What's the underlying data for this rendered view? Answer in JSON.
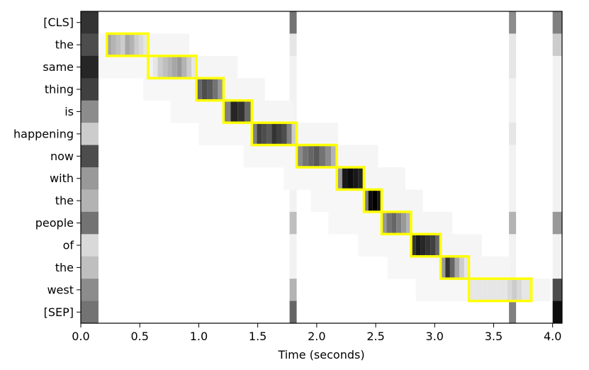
{
  "chart_data": {
    "type": "heatmap",
    "title": "",
    "xlabel": "Time (seconds)",
    "ylabel": "",
    "xlim": [
      0.0,
      4.08
    ],
    "x_ticks": [
      "0.0",
      "0.5",
      "1.0",
      "1.5",
      "2.0",
      "2.5",
      "3.0",
      "3.5",
      "4.0"
    ],
    "x_tick_values": [
      0.0,
      0.5,
      1.0,
      1.5,
      2.0,
      2.5,
      3.0,
      3.5,
      4.0
    ],
    "tokens": [
      "[CLS]",
      "the",
      "same",
      "thing",
      "is",
      "happening",
      "now",
      "with",
      "the",
      "people",
      "of",
      "the",
      "west",
      "[SEP]"
    ],
    "colormap": "grayscale (white = low, black = high)",
    "highlight_color": "#ffff00",
    "frame_width_seconds": 0.04,
    "alignment_boxes": [
      {
        "token": "the",
        "start": 0.22,
        "end": 0.57
      },
      {
        "token": "same",
        "start": 0.57,
        "end": 0.98
      },
      {
        "token": "thing",
        "start": 0.98,
        "end": 1.21
      },
      {
        "token": "is",
        "start": 1.21,
        "end": 1.45
      },
      {
        "token": "happening",
        "start": 1.45,
        "end": 1.83
      },
      {
        "token": "now",
        "start": 1.83,
        "end": 2.17
      },
      {
        "token": "with",
        "start": 2.17,
        "end": 2.4
      },
      {
        "token": "the",
        "start": 2.4,
        "end": 2.55
      },
      {
        "token": "people",
        "start": 2.55,
        "end": 2.8
      },
      {
        "token": "of",
        "start": 2.8,
        "end": 3.05
      },
      {
        "token": "the",
        "start": 3.05,
        "end": 3.29
      },
      {
        "token": "west",
        "start": 3.29,
        "end": 3.82
      }
    ],
    "peaks": [
      {
        "token": "the",
        "start": 0.22,
        "end": 0.57,
        "level": [
          0.35,
          0.3,
          0.25,
          0.2,
          0.35,
          0.3,
          0.2,
          0.15,
          0.1
        ]
      },
      {
        "token": "same",
        "start": 0.57,
        "end": 0.98,
        "level": [
          0.05,
          0.1,
          0.2,
          0.25,
          0.3,
          0.35,
          0.4,
          0.3,
          0.2,
          0.1
        ]
      },
      {
        "token": "thing",
        "start": 0.98,
        "end": 1.21,
        "level": [
          0.6,
          0.7,
          0.65,
          0.55,
          0.4
        ]
      },
      {
        "token": "is",
        "start": 1.21,
        "end": 1.45,
        "level": [
          0.5,
          0.85,
          0.8,
          0.6
        ]
      },
      {
        "token": "happening",
        "start": 1.45,
        "end": 1.83,
        "level": [
          0.5,
          0.75,
          0.7,
          0.65,
          0.8,
          0.75,
          0.7,
          0.5,
          0.2
        ]
      },
      {
        "token": "now",
        "start": 1.83,
        "end": 2.17,
        "level": [
          0.45,
          0.55,
          0.6,
          0.65,
          0.55,
          0.45,
          0.3
        ]
      },
      {
        "token": "with",
        "start": 2.17,
        "end": 2.4,
        "level": [
          0.4,
          0.9,
          0.95,
          0.9,
          0.85
        ]
      },
      {
        "token": "the",
        "start": 2.4,
        "end": 2.55,
        "level": [
          0.5,
          0.95,
          1.0,
          0.9
        ]
      },
      {
        "token": "people",
        "start": 2.55,
        "end": 2.8,
        "level": [
          0.4,
          0.55,
          0.6,
          0.5,
          0.4,
          0.3
        ]
      },
      {
        "token": "of",
        "start": 2.8,
        "end": 3.05,
        "level": [
          0.8,
          0.9,
          0.85,
          0.8,
          0.75,
          0.6
        ]
      },
      {
        "token": "the",
        "start": 3.05,
        "end": 3.29,
        "level": [
          0.4,
          0.8,
          0.6,
          0.35,
          0.2,
          0.1
        ]
      },
      {
        "token": "west",
        "start": 3.29,
        "end": 3.82,
        "level": [
          0.1,
          0.1,
          0.1,
          0.1,
          0.1,
          0.1,
          0.1,
          0.1,
          0.15,
          0.2,
          0.15,
          0.1,
          0.1
        ]
      }
    ],
    "column_artifacts": [
      {
        "start": 0.0,
        "end": 0.15,
        "levels": [
          0.8,
          0.7,
          0.85,
          0.75,
          0.45,
          0.2,
          0.7,
          0.4,
          0.3,
          0.55,
          0.15,
          0.25,
          0.45,
          0.55
        ]
      },
      {
        "start": 1.77,
        "end": 1.83,
        "levels": [
          0.55,
          0.1,
          0.05,
          0.05,
          0.05,
          0.05,
          0.05,
          0.05,
          0.05,
          0.25,
          0.05,
          0.05,
          0.3,
          0.6
        ]
      },
      {
        "start": 3.63,
        "end": 3.69,
        "levels": [
          0.45,
          0.1,
          0.1,
          0.05,
          0.05,
          0.1,
          0.05,
          0.05,
          0.05,
          0.3,
          0.05,
          0.05,
          0.25,
          0.5
        ]
      },
      {
        "start": 4.0,
        "end": 4.08,
        "levels": [
          0.5,
          0.2,
          0.05,
          0.05,
          0.05,
          0.05,
          0.05,
          0.05,
          0.05,
          0.4,
          0.05,
          0.05,
          0.7,
          0.95
        ]
      }
    ]
  }
}
